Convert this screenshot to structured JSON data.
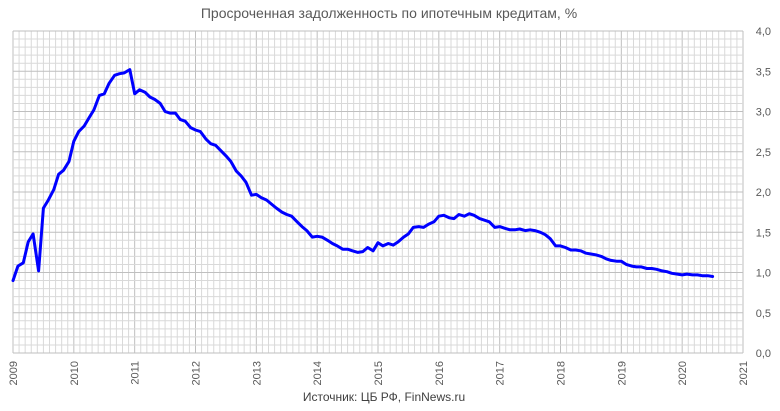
{
  "chart_data": {
    "type": "line",
    "title": "Просроченная задолженность по ипотечным кредитам, %",
    "source": "Источник: ЦБ РФ, FinNews.ru",
    "xlabel": "",
    "ylabel": "",
    "xlim": [
      2009,
      2021
    ],
    "ylim": [
      0,
      4
    ],
    "x_ticks": [
      "2009",
      "2010",
      "2011",
      "2012",
      "2013",
      "2014",
      "2015",
      "2016",
      "2017",
      "2018",
      "2019",
      "2020",
      "2021"
    ],
    "y_ticks": [
      "0,0",
      "0,5",
      "1,0",
      "1,5",
      "2,0",
      "2,5",
      "3,0",
      "3,5",
      "4,0"
    ],
    "y_axis_side": "right",
    "grid": true,
    "line_color": "#0000ff",
    "series": [
      {
        "x": [
          2009.0,
          2009.08,
          2009.17,
          2009.25,
          2009.33,
          2009.42,
          2009.5,
          2009.58,
          2009.67,
          2009.75,
          2009.83,
          2009.92,
          2010.0,
          2010.08,
          2010.17,
          2010.25,
          2010.33,
          2010.42,
          2010.5,
          2010.58,
          2010.67,
          2010.75,
          2010.83,
          2010.92,
          2011.0,
          2011.08,
          2011.17,
          2011.25,
          2011.33,
          2011.42,
          2011.5,
          2011.58,
          2011.67,
          2011.75,
          2011.83,
          2011.92,
          2012.0,
          2012.08,
          2012.17,
          2012.25,
          2012.33,
          2012.42,
          2012.5,
          2012.58,
          2012.67,
          2012.75,
          2012.83,
          2012.92,
          2013.0,
          2013.08,
          2013.17,
          2013.25,
          2013.33,
          2013.42,
          2013.5,
          2013.58,
          2013.67,
          2013.75,
          2013.83,
          2013.92,
          2014.0,
          2014.08,
          2014.17,
          2014.25,
          2014.33,
          2014.42,
          2014.5,
          2014.58,
          2014.67,
          2014.75,
          2014.83,
          2014.92,
          2015.0,
          2015.08,
          2015.17,
          2015.25,
          2015.33,
          2015.42,
          2015.5,
          2015.58,
          2015.67,
          2015.75,
          2015.83,
          2015.92,
          2016.0,
          2016.08,
          2016.17,
          2016.25,
          2016.33,
          2016.42,
          2016.5,
          2016.58,
          2016.67,
          2016.75,
          2016.83,
          2016.92,
          2017.0,
          2017.08,
          2017.17,
          2017.25,
          2017.33,
          2017.42,
          2017.5,
          2017.58,
          2017.67,
          2017.75,
          2017.83,
          2017.92,
          2018.0,
          2018.08,
          2018.17,
          2018.25,
          2018.33,
          2018.42,
          2018.5,
          2018.58,
          2018.67,
          2018.75,
          2018.83,
          2018.92,
          2019.0,
          2019.08,
          2019.17,
          2019.25,
          2019.33,
          2019.42,
          2019.5,
          2019.58,
          2019.67,
          2019.75,
          2019.83,
          2019.92,
          2020.0,
          2020.08,
          2020.17,
          2020.25,
          2020.33,
          2020.42,
          2020.5
        ],
        "values": [
          0.9,
          1.08,
          1.12,
          1.38,
          1.48,
          1.02,
          1.8,
          1.9,
          2.03,
          2.22,
          2.27,
          2.38,
          2.63,
          2.75,
          2.82,
          2.92,
          3.02,
          3.2,
          3.22,
          3.35,
          3.45,
          3.47,
          3.48,
          3.52,
          3.22,
          3.27,
          3.24,
          3.18,
          3.15,
          3.1,
          3.0,
          2.98,
          2.98,
          2.9,
          2.88,
          2.8,
          2.77,
          2.75,
          2.66,
          2.6,
          2.58,
          2.51,
          2.45,
          2.38,
          2.26,
          2.2,
          2.12,
          1.96,
          1.97,
          1.93,
          1.9,
          1.85,
          1.8,
          1.75,
          1.72,
          1.7,
          1.63,
          1.57,
          1.52,
          1.44,
          1.45,
          1.44,
          1.4,
          1.36,
          1.33,
          1.29,
          1.29,
          1.27,
          1.25,
          1.26,
          1.31,
          1.27,
          1.37,
          1.33,
          1.36,
          1.34,
          1.38,
          1.44,
          1.48,
          1.56,
          1.57,
          1.56,
          1.6,
          1.63,
          1.7,
          1.71,
          1.68,
          1.67,
          1.72,
          1.7,
          1.73,
          1.71,
          1.67,
          1.65,
          1.63,
          1.56,
          1.57,
          1.55,
          1.53,
          1.53,
          1.54,
          1.52,
          1.53,
          1.52,
          1.5,
          1.47,
          1.42,
          1.33,
          1.33,
          1.31,
          1.28,
          1.28,
          1.27,
          1.24,
          1.23,
          1.22,
          1.2,
          1.17,
          1.15,
          1.14,
          1.14,
          1.1,
          1.08,
          1.07,
          1.07,
          1.05,
          1.05,
          1.04,
          1.02,
          1.01,
          0.99,
          0.98,
          0.97,
          0.98,
          0.97,
          0.97,
          0.96,
          0.96,
          0.95
        ]
      }
    ]
  }
}
